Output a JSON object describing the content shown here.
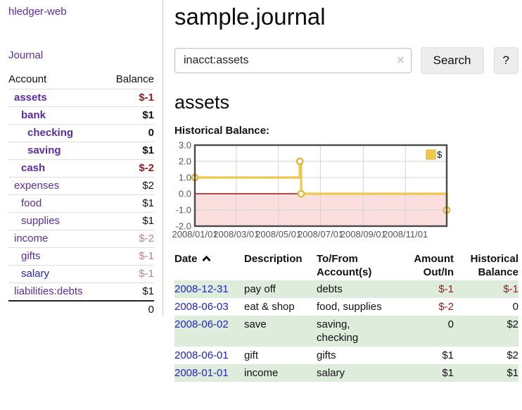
{
  "sidebar": {
    "app_title": "hledger-web",
    "nav": {
      "journal_label": "Journal"
    },
    "accounts_table": {
      "headers": {
        "account": "Account",
        "balance": "Balance"
      },
      "rows": [
        {
          "name": "assets",
          "balance": "$-1",
          "depth": 1,
          "bold": true,
          "neg": "strong",
          "link": "purple"
        },
        {
          "name": "bank",
          "balance": "$1",
          "depth": 2,
          "bold": true,
          "neg": "none",
          "link": "purple"
        },
        {
          "name": "checking",
          "balance": "0",
          "depth": 3,
          "bold": true,
          "neg": "none",
          "link": "purple"
        },
        {
          "name": "saving",
          "balance": "$1",
          "depth": 3,
          "bold": true,
          "neg": "none",
          "link": "purple"
        },
        {
          "name": "cash",
          "balance": "$-2",
          "depth": 2,
          "bold": true,
          "neg": "strong",
          "link": "purple"
        },
        {
          "name": "expenses",
          "balance": "$2",
          "depth": 1,
          "bold": false,
          "neg": "none",
          "link": "purple"
        },
        {
          "name": "food",
          "balance": "$1",
          "depth": 2,
          "bold": false,
          "neg": "none",
          "link": "purple"
        },
        {
          "name": "supplies",
          "balance": "$1",
          "depth": 2,
          "bold": false,
          "neg": "none",
          "link": "purple"
        },
        {
          "name": "income",
          "balance": "$-2",
          "depth": 1,
          "bold": false,
          "neg": "soft",
          "link": "purple"
        },
        {
          "name": "gifts",
          "balance": "$-1",
          "depth": 2,
          "bold": false,
          "neg": "soft",
          "link": "purple"
        },
        {
          "name": "salary",
          "balance": "$-1",
          "depth": 2,
          "bold": false,
          "neg": "soft",
          "link": "blue"
        },
        {
          "name": "liabilities:debts",
          "balance": "$1",
          "depth": 1,
          "bold": false,
          "neg": "none",
          "link": "purple"
        }
      ],
      "total": "0"
    }
  },
  "main": {
    "title": "sample.journal",
    "search": {
      "value": "inacct:assets",
      "search_label": "Search",
      "help_label": "?"
    },
    "account_heading": "assets",
    "chart_label": "Historical Balance:"
  },
  "icons": {
    "clear_search": "×",
    "sort_asc": "chevron-up",
    "legend_swatch": "filled-square"
  },
  "colors": {
    "purple_link": "#5c2d9e",
    "blue_link": "#2222cc",
    "negative_strong": "#8f1d1d",
    "negative_soft": "#c08181",
    "row_green": "#ddecdb",
    "chart_line": "#ecc84c",
    "chart_marker_ring": "#dfb93e",
    "chart_marker_fill": "#fffcf0",
    "chart_negative_region": "#fbdede",
    "chart_zero_line": "#9e1410",
    "chart_grid": "#d4d4d4",
    "chart_border": "#4a4a4a",
    "axis_text": "#555555"
  },
  "chart_data": {
    "type": "line",
    "step": true,
    "title": "Historical Balance:",
    "legend": "$",
    "legend_position": "top-right",
    "grid": true,
    "ylim": [
      -2.0,
      3.0
    ],
    "yticks": [
      "3.0",
      "2.0",
      "1.0",
      "0.0",
      "-1.0",
      "-2.0"
    ],
    "ytick_values": [
      3.0,
      2.0,
      1.0,
      0.0,
      -1.0,
      -2.0
    ],
    "xticks": [
      "2008/01/01",
      "2008/03/01",
      "2008/05/01",
      "2008/07/01",
      "2008/09/01",
      "2008/11/01"
    ],
    "xtick_dates": [
      "2008-01-01",
      "2008-03-01",
      "2008-05-01",
      "2008-07-01",
      "2008-09-01",
      "2008-11-01"
    ],
    "x_start": "2008-01-01",
    "x_end": "2008-12-31",
    "series": [
      {
        "name": "$",
        "points": [
          {
            "date": "2008-01-01",
            "value": 1
          },
          {
            "date": "2008-06-01",
            "value": 2
          },
          {
            "date": "2008-06-03",
            "value": 0
          },
          {
            "date": "2008-12-31",
            "value": -1
          }
        ]
      }
    ]
  },
  "register_table": {
    "headers": [
      "Date",
      "Description",
      "To/From Account(s)",
      "Amount Out/In",
      "Historical Balance"
    ],
    "rows": [
      {
        "date": "2008-12-31",
        "description": "pay off",
        "accounts": "debts",
        "amount": "$-1",
        "balance": "$-1"
      },
      {
        "date": "2008-06-03",
        "description": "eat & shop",
        "accounts": "food, supplies",
        "amount": "$-2",
        "balance": "0"
      },
      {
        "date": "2008-06-02",
        "description": "save",
        "accounts": "saving, checking",
        "amount": "0",
        "balance": "$2"
      },
      {
        "date": "2008-06-01",
        "description": "gift",
        "accounts": "gifts",
        "amount": "$1",
        "balance": "$2"
      },
      {
        "date": "2008-01-01",
        "description": "income",
        "accounts": "salary",
        "amount": "$1",
        "balance": "$1"
      }
    ]
  }
}
